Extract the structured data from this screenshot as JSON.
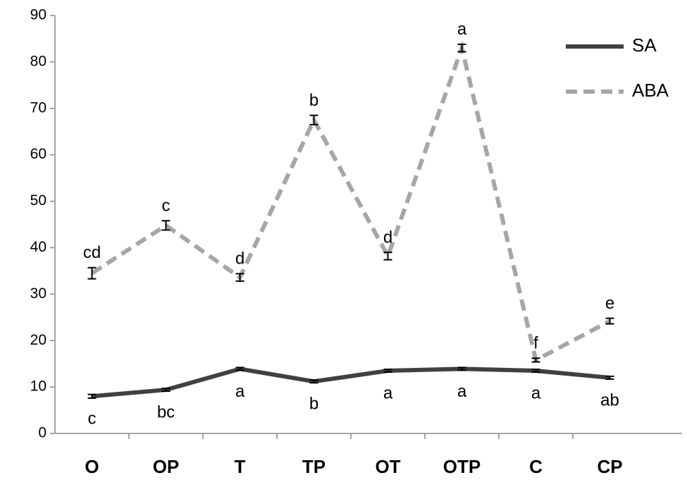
{
  "chart_data": {
    "type": "line",
    "categories": [
      "O",
      "OP",
      "T",
      "TP",
      "OT",
      "OTP",
      "C",
      "CP"
    ],
    "series": [
      {
        "name": "SA",
        "color": "#404040",
        "dash": false,
        "values": [
          8.0,
          9.4,
          13.9,
          11.2,
          13.5,
          13.9,
          13.5,
          12.0
        ],
        "errors": [
          0.4,
          0.3,
          0.3,
          0.3,
          0.3,
          0.3,
          0.3,
          0.3
        ],
        "annotations": [
          "c",
          "bc",
          "a",
          "b",
          "a",
          "a",
          "a",
          "ab"
        ],
        "annotation_side": "below"
      },
      {
        "name": "ABA",
        "color": "#a6a6a6",
        "dash": true,
        "values": [
          34.5,
          44.8,
          33.6,
          67.5,
          38.2,
          83.0,
          15.8,
          24.2
        ],
        "errors": [
          1.2,
          1.0,
          0.8,
          1.0,
          0.8,
          0.8,
          0.4,
          0.6
        ],
        "annotations": [
          "cd",
          "c",
          "d",
          "b",
          "d",
          "a",
          "f",
          "e"
        ],
        "annotation_side": "above"
      }
    ],
    "ylim": [
      0,
      90
    ],
    "yticks": [
      0,
      10,
      20,
      30,
      40,
      50,
      60,
      70,
      80,
      90
    ],
    "grid": false,
    "legend": "upper right"
  }
}
